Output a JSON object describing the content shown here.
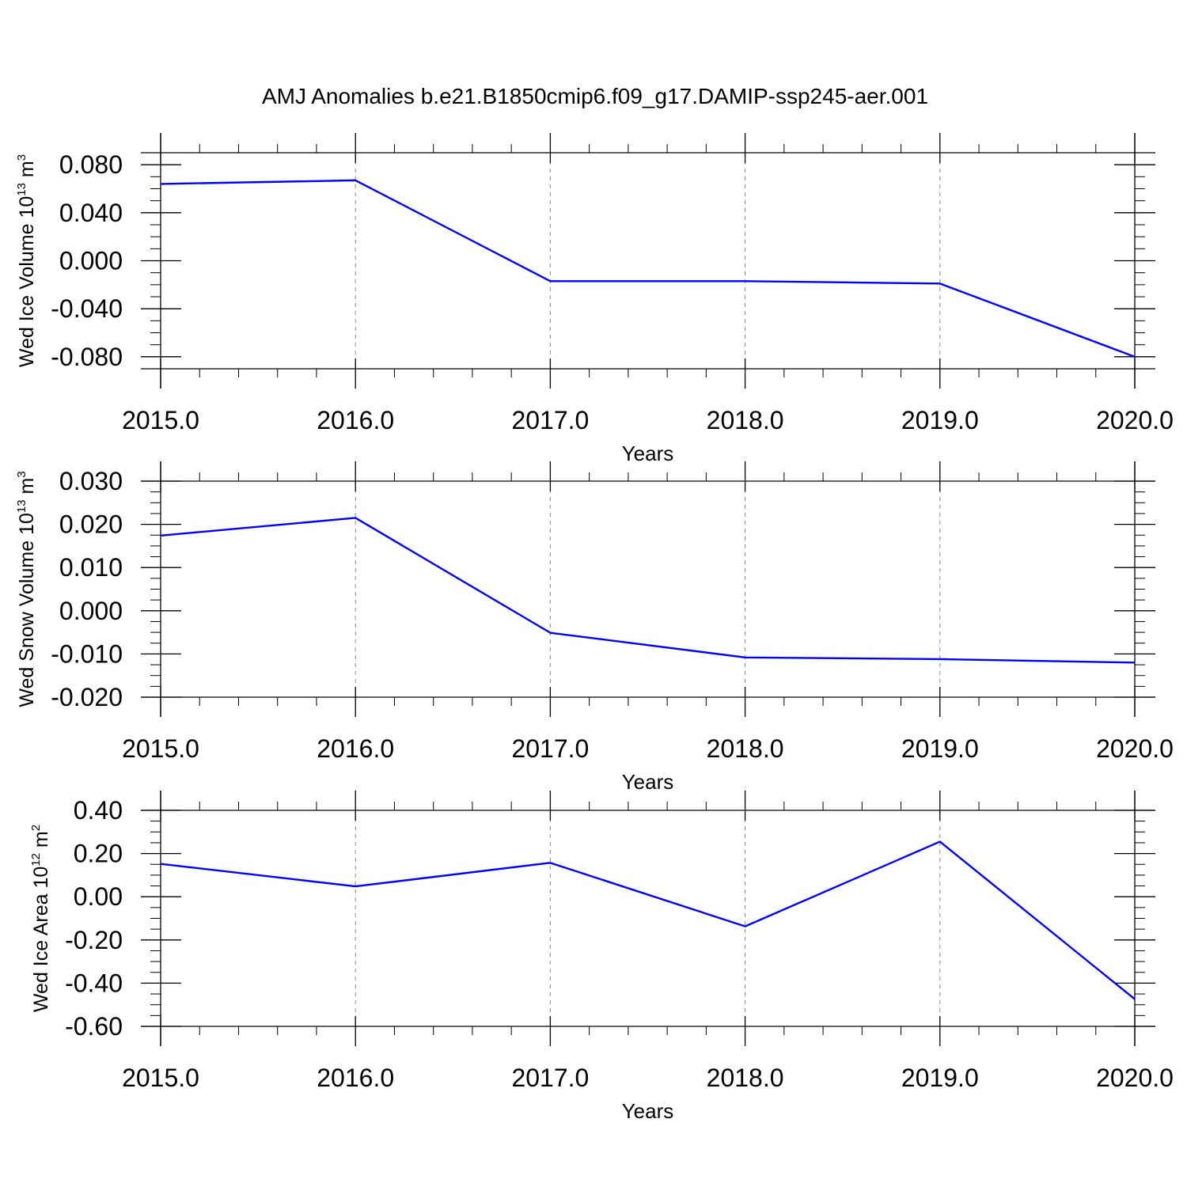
{
  "title": "AMJ Anomalies b.e21.B1850cmip6.f09_g17.DAMIP-ssp245-aer.001",
  "chart_data": [
    {
      "type": "line",
      "ylabel": {
        "main": "Wed Ice Volume 10",
        "exp": "13",
        "unit": " m",
        "unit_exp": "3"
      },
      "xlabel": "Years",
      "xlim": [
        2015,
        2020
      ],
      "ylim": [
        -0.09,
        0.09
      ],
      "x": [
        2015,
        2016,
        2017,
        2018,
        2019,
        2020
      ],
      "xtick_labels": [
        "2015.0",
        "2016.0",
        "2017.0",
        "2018.0",
        "2019.0",
        "2020.0"
      ],
      "yticks": [
        0.08,
        0.04,
        0.0,
        -0.04,
        -0.08
      ],
      "ytick_labels": [
        "0.080",
        "0.040",
        "0.000",
        "-0.040",
        "-0.080"
      ],
      "series": [
        {
          "values": [
            0.064,
            0.067,
            -0.017,
            -0.017,
            -0.019,
            -0.08
          ]
        }
      ],
      "line_color": "#0000ff",
      "grid": "vertical dashed"
    },
    {
      "type": "line",
      "ylabel": {
        "main": "Wed Snow Volume 10",
        "exp": "13",
        "unit": " m",
        "unit_exp": "3"
      },
      "xlabel": "Years",
      "xlim": [
        2015,
        2020
      ],
      "ylim": [
        -0.02,
        0.03
      ],
      "x": [
        2015,
        2016,
        2017,
        2018,
        2019,
        2020
      ],
      "xtick_labels": [
        "2015.0",
        "2016.0",
        "2017.0",
        "2018.0",
        "2019.0",
        "2020.0"
      ],
      "yticks": [
        0.03,
        0.02,
        0.01,
        0.0,
        -0.01,
        -0.02
      ],
      "ytick_labels": [
        "0.030",
        "0.020",
        "0.010",
        "0.000",
        "-0.010",
        "-0.020"
      ],
      "series": [
        {
          "values": [
            0.0174,
            0.0215,
            -0.0051,
            -0.0108,
            -0.0112,
            -0.012
          ]
        }
      ],
      "line_color": "#0000ff",
      "grid": "vertical dashed"
    },
    {
      "type": "line",
      "ylabel": {
        "main": "Wed Ice Area 10",
        "exp": "12",
        "unit": " m",
        "unit_exp": "2"
      },
      "xlabel": "Years",
      "xlim": [
        2015,
        2020
      ],
      "ylim": [
        -0.6,
        0.4
      ],
      "x": [
        2015,
        2016,
        2017,
        2018,
        2019,
        2020
      ],
      "xtick_labels": [
        "2015.0",
        "2016.0",
        "2017.0",
        "2018.0",
        "2019.0",
        "2020.0"
      ],
      "yticks": [
        0.4,
        0.2,
        0.0,
        -0.2,
        -0.4,
        -0.6
      ],
      "ytick_labels": [
        "0.40",
        "0.20",
        "0.00",
        "-0.20",
        "-0.40",
        "-0.60"
      ],
      "series": [
        {
          "values": [
            0.152,
            0.048,
            0.157,
            -0.137,
            0.255,
            -0.474
          ]
        }
      ],
      "line_color": "#0000ff",
      "grid": "vertical dashed"
    }
  ]
}
